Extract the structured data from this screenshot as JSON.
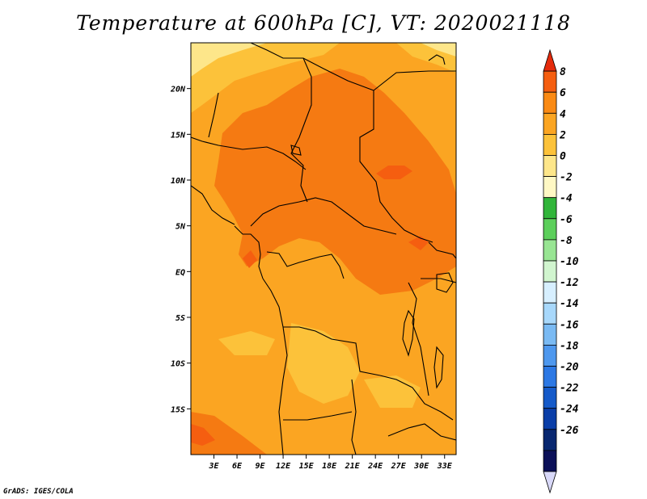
{
  "title": "Temperature at 600hPa [C], VT: 2020021118",
  "credit": "GrADS: IGES/COLA",
  "map": {
    "lon_range": [
      0,
      34.5
    ],
    "lat_range": [
      -20,
      25
    ],
    "x_ticks": [
      "3E",
      "6E",
      "9E",
      "12E",
      "15E",
      "18E",
      "21E",
      "24E",
      "27E",
      "30E",
      "33E"
    ],
    "x_tick_values": [
      3,
      6,
      9,
      12,
      15,
      18,
      21,
      24,
      27,
      30,
      33
    ],
    "y_ticks": [
      "20N",
      "15N",
      "10N",
      "5N",
      "EQ",
      "5S",
      "10S",
      "15S"
    ],
    "y_tick_values": [
      20,
      15,
      10,
      5,
      0,
      -5,
      -10,
      -15
    ]
  },
  "colorbar": {
    "labels": [
      "8",
      "6",
      "4",
      "2",
      "0",
      "-2",
      "-4",
      "-6",
      "-8",
      "-10",
      "-12",
      "-14",
      "-16",
      "-18",
      "-20",
      "-22",
      "-24",
      "-26"
    ],
    "colors": [
      "#e52b0c",
      "#f55e10",
      "#fa8a14",
      "#fba522",
      "#fcc23a",
      "#fde68a",
      "#fff8c4",
      "#31b53a",
      "#5ccf5b",
      "#98e593",
      "#d1f5cf",
      "#d7efff",
      "#a8d8fb",
      "#7abaf3",
      "#4e98ee",
      "#2c78e4",
      "#155ac9",
      "#0a3ea8",
      "#082770",
      "#0b1058",
      "#d8d8f8"
    ]
  },
  "colors": {
    "background": "#ffffff",
    "boundary": "#000000",
    "field_base": "#fba522"
  }
}
